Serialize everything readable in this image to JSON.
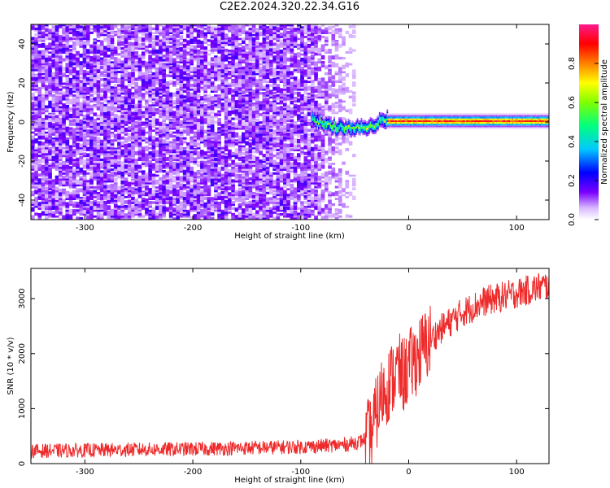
{
  "title": "C2E2.2024.320.22.34.G16",
  "chart_data": [
    {
      "type": "heatmap",
      "xlabel": "Height of straight line (km)",
      "ylabel": "Frequency (Hz)",
      "xlim": [
        -350,
        130
      ],
      "ylim": [
        -50,
        50
      ],
      "x_ticks": [
        -300,
        -200,
        -100,
        0,
        100
      ],
      "y_ticks": [
        -40,
        -20,
        0,
        20,
        40
      ],
      "colorbar": {
        "label": "Normalized spectral amplitude",
        "range": [
          0,
          1
        ],
        "ticks": [
          0.0,
          0.2,
          0.4,
          0.6,
          0.8
        ],
        "colormap": [
          "#ffffff",
          "#c48cff",
          "#7a00ff",
          "#0000ff",
          "#00c8ff",
          "#00ff7f",
          "#7fff00",
          "#ffff00",
          "#ff8000",
          "#ff0000",
          "#ff1a8c"
        ]
      },
      "regions": [
        {
          "name": "noise",
          "x": [
            -350,
            -50
          ],
          "freq": [
            -50,
            50
          ],
          "amplitude": [
            0.05,
            0.25
          ]
        },
        {
          "name": "transition",
          "x": [
            -90,
            -20
          ],
          "freq_center": [
            1,
            -4
          ],
          "amplitude": [
            0.4,
            0.75
          ]
        },
        {
          "name": "carrier",
          "x": [
            -20,
            130
          ],
          "freq_center": 0,
          "amplitude": [
            0.8,
            0.95
          ]
        }
      ]
    },
    {
      "type": "line",
      "xlabel": "Height of straight line (km)",
      "ylabel": "SNR (10 * v/v)",
      "xlim": [
        -350,
        130
      ],
      "ylim": [
        0,
        3550
      ],
      "x_ticks": [
        -300,
        -200,
        -100,
        0,
        100
      ],
      "y_ticks": [
        0,
        1000,
        2000,
        3000
      ],
      "color": "#ee2a2a",
      "series": [
        {
          "x": [
            -350,
            -300,
            -250,
            -200,
            -150,
            -100,
            -60,
            -45,
            -35,
            -30,
            -25,
            -20,
            -15,
            -10,
            -5,
            0,
            10,
            20,
            30,
            40,
            50,
            60,
            70,
            80,
            90,
            100,
            110,
            120,
            130
          ],
          "y": [
            230,
            240,
            255,
            265,
            285,
            305,
            340,
            400,
            520,
            900,
            1250,
            1400,
            1550,
            1700,
            1600,
            1750,
            2000,
            2250,
            2450,
            2600,
            2750,
            2850,
            2950,
            3000,
            3050,
            3100,
            3150,
            3200,
            3250
          ]
        }
      ]
    }
  ]
}
